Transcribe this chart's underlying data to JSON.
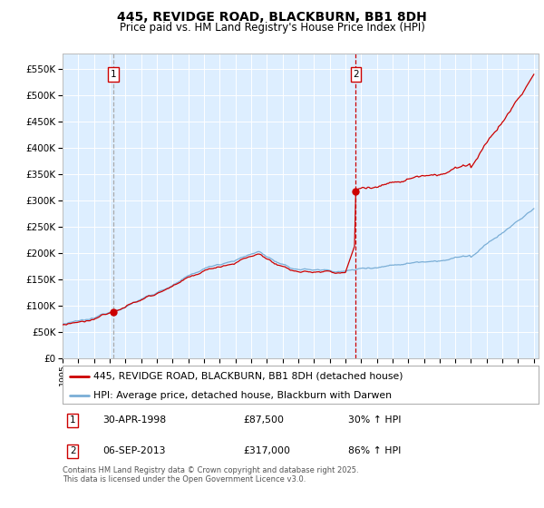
{
  "title": "445, REVIDGE ROAD, BLACKBURN, BB1 8DH",
  "subtitle": "Price paid vs. HM Land Registry's House Price Index (HPI)",
  "legend_line1": "445, REVIDGE ROAD, BLACKBURN, BB1 8DH (detached house)",
  "legend_line2": "HPI: Average price, detached house, Blackburn with Darwen",
  "annotation1_date": "30-APR-1998",
  "annotation1_price": "£87,500",
  "annotation1_hpi": "30% ↑ HPI",
  "annotation2_date": "06-SEP-2013",
  "annotation2_price": "£317,000",
  "annotation2_hpi": "86% ↑ HPI",
  "footer": "Contains HM Land Registry data © Crown copyright and database right 2025.\nThis data is licensed under the Open Government Licence v3.0.",
  "red_color": "#cc0000",
  "blue_color": "#7aaed6",
  "vline1_color": "#aaaaaa",
  "vline2_color": "#cc0000",
  "bg_color": "#ddeeff",
  "grid_color": "#ffffff",
  "ylim": [
    0,
    580000
  ],
  "ytick_step": 50000
}
